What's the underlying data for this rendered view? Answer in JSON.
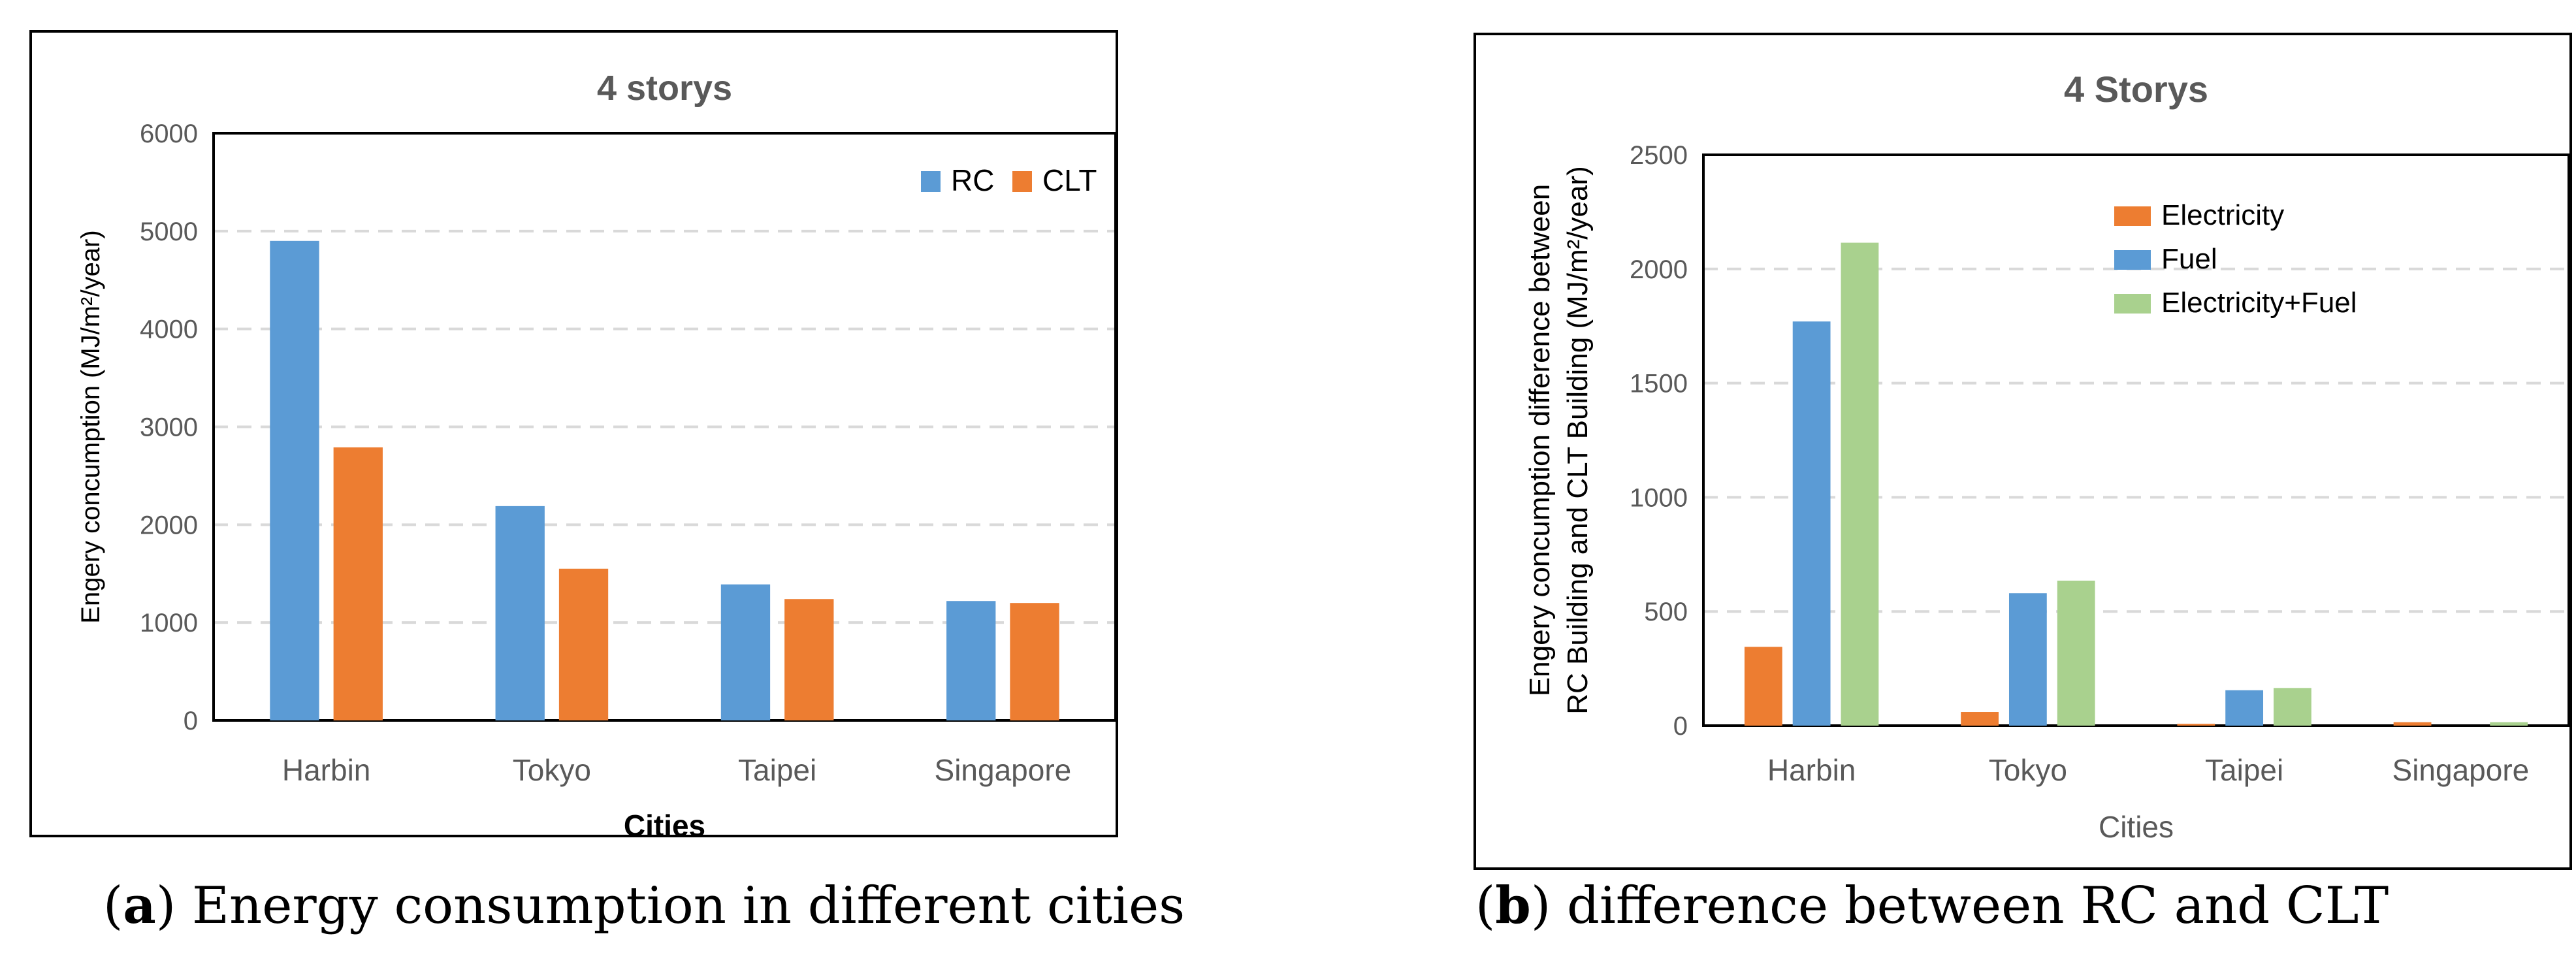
{
  "colors": {
    "blue": "#5B9BD5",
    "orange": "#ED7D31",
    "green": "#A9D18E",
    "grid": "#D9D9D9",
    "axis": "#000000",
    "text": "#595959"
  },
  "panels": [
    {
      "caption_letter": "a",
      "caption_rest": ") Energy consumption in different cities",
      "caption_open": "("
    },
    {
      "caption_letter": "b",
      "caption_rest": ") difference between RC and CLT",
      "caption_open": "("
    }
  ],
  "chart_data": [
    {
      "type": "bar",
      "title": "4 storys",
      "xlabel": "Cities",
      "ylabel": "Engery concumption (MJ/m²/year)",
      "categories": [
        "Harbin",
        "Tokyo",
        "Taipei",
        "Singapore"
      ],
      "series": [
        {
          "name": "RC",
          "color": "#5B9BD5",
          "values": [
            4900,
            2190,
            1390,
            1220
          ]
        },
        {
          "name": "CLT",
          "color": "#ED7D31",
          "values": [
            2790,
            1550,
            1240,
            1200
          ]
        }
      ],
      "ylim": [
        0,
        6000
      ],
      "yticks": [
        0,
        1000,
        2000,
        3000,
        4000,
        5000,
        6000
      ],
      "grid": true,
      "legend": "top-right, horizontal"
    },
    {
      "type": "bar",
      "title": "4 Storys",
      "xlabel": "Cities",
      "ylabel_lines": [
        "Engery concumption difference between",
        "RC Building and CLT Building (MJ/m²/year)"
      ],
      "categories": [
        "Harbin",
        "Tokyo",
        "Taipei",
        "Singapore"
      ],
      "series": [
        {
          "name": "Electricity",
          "color": "#ED7D31",
          "values": [
            345,
            60,
            8,
            15
          ]
        },
        {
          "name": "Fuel",
          "color": "#5B9BD5",
          "values": [
            1770,
            580,
            155,
            0
          ]
        },
        {
          "name": "Electricity+Fuel",
          "color": "#A9D18E",
          "values": [
            2115,
            635,
            165,
            15
          ]
        }
      ],
      "ylim": [
        0,
        2500
      ],
      "yticks": [
        0,
        500,
        1000,
        1500,
        2000,
        2500
      ],
      "grid": true,
      "legend": "top-right, vertical"
    }
  ]
}
